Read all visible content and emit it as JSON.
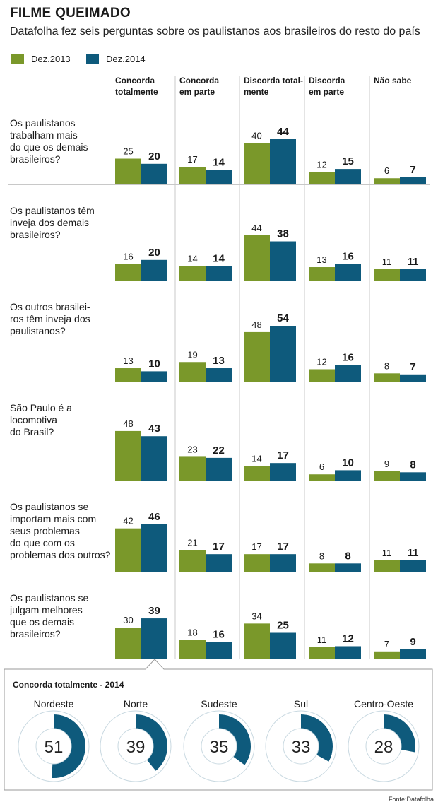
{
  "title": "FILME QUEIMADO",
  "subtitle": "Datafolha fez seis perguntas sobre os paulistanos aos brasileiros do resto do país",
  "colors": {
    "dez2013": "#7a982a",
    "dez2014": "#0e5a7c",
    "rule": "#c8c8c8",
    "ring_bg": "#ffffff"
  },
  "legend": [
    {
      "label": "Dez.2013",
      "color": "#7a982a"
    },
    {
      "label": "Dez.2014",
      "color": "#0e5a7c"
    }
  ],
  "source": "Fonte:Datafolha",
  "chart_data": [
    {
      "type": "bar",
      "categories": [
        "Concorda totalmente",
        "Concorda em parte",
        "Discorda totalmente",
        "Discorda em parte",
        "Não sabe"
      ],
      "category_lines": [
        [
          "Concorda",
          "totalmente"
        ],
        [
          "Concorda",
          "em parte"
        ],
        [
          "Discorda total-",
          "mente"
        ],
        [
          "Discorda",
          "em parte"
        ],
        [
          "Não sabe"
        ]
      ],
      "series_names": [
        "Dez.2013",
        "Dez.2014"
      ],
      "questions": [
        {
          "lines": [
            "Os paulistanos",
            "trabalham mais",
            "do que os demais",
            "brasileiros?"
          ],
          "dez2013": [
            25,
            17,
            40,
            12,
            6
          ],
          "dez2014": [
            20,
            14,
            44,
            15,
            7
          ]
        },
        {
          "lines": [
            "Os paulistanos têm",
            "inveja dos demais",
            "brasileiros?"
          ],
          "dez2013": [
            16,
            14,
            44,
            13,
            11
          ],
          "dez2014": [
            20,
            14,
            38,
            16,
            11
          ]
        },
        {
          "lines": [
            "Os outros brasilei-",
            "ros têm inveja dos",
            "paulistanos?"
          ],
          "dez2013": [
            13,
            19,
            48,
            12,
            8
          ],
          "dez2014": [
            10,
            13,
            54,
            16,
            7
          ]
        },
        {
          "lines": [
            "São Paulo é a",
            "locomotiva",
            "do Brasil?"
          ],
          "dez2013": [
            48,
            23,
            14,
            6,
            9
          ],
          "dez2014": [
            43,
            22,
            17,
            10,
            8
          ]
        },
        {
          "lines": [
            "Os paulistanos se",
            "importam mais com",
            "seus problemas",
            "do que com os",
            "problemas dos outros?"
          ],
          "dez2013": [
            42,
            21,
            17,
            8,
            11
          ],
          "dez2014": [
            46,
            17,
            17,
            8,
            11
          ]
        },
        {
          "lines": [
            "Os paulistanos se",
            "julgam melhores",
            "que os demais",
            "brasileiros?"
          ],
          "dez2013": [
            30,
            18,
            34,
            11,
            7
          ],
          "dez2014": [
            39,
            16,
            25,
            12,
            9
          ]
        }
      ]
    },
    {
      "type": "pie",
      "title": "Concorda totalmente - 2014",
      "categories": [
        "Nordeste",
        "Norte",
        "Sudeste",
        "Sul",
        "Centro-Oeste"
      ],
      "values": [
        51,
        39,
        35,
        33,
        28
      ]
    }
  ]
}
